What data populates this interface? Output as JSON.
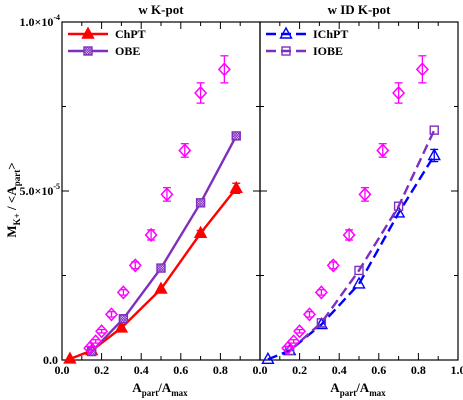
{
  "chart_data": [
    {
      "type": "scatter",
      "title": "w K-pot",
      "xlim": [
        0,
        1.0
      ],
      "ylim": [
        0,
        0.0001
      ],
      "x_ticks": [
        0,
        0.2,
        0.4,
        0.6,
        0.8
      ],
      "x_tick_labels": [
        "0.0",
        "0.2",
        "0.4",
        "0.6",
        "0.8"
      ],
      "y_ticks": [
        0,
        5e-05,
        0.0001
      ],
      "y_tick_labels": [
        "0.0",
        "5.0×10",
        "1.0×10"
      ],
      "y_tick_exp": [
        "",
        "-5",
        "-4"
      ],
      "legend_position": "top-left",
      "series": [
        {
          "name": "ChPT",
          "color": "#ff0000",
          "marker": "triangle-filled",
          "line": "solid",
          "x": [
            0.04,
            0.15,
            0.3,
            0.5,
            0.7,
            0.88
          ],
          "y": [
            3e-07,
            2.8e-06,
            9.5e-06,
            2.1e-05,
            3.75e-05,
            5.08e-05
          ],
          "err": [
            0,
            0,
            0,
            0,
            8e-07,
            1.5e-06
          ]
        },
        {
          "name": "OBE",
          "color": "#7f2fbf",
          "marker": "square-hatched",
          "line": "solid",
          "x": [
            0.15,
            0.31,
            0.5,
            0.7,
            0.88
          ],
          "y": [
            2.5e-06,
            1.22e-05,
            2.72e-05,
            4.65e-05,
            6.63e-05
          ],
          "err": [
            0,
            0,
            0,
            0,
            0
          ]
        },
        {
          "marker": "diamond-open",
          "color": "#ff00ff",
          "line": "none",
          "x": [
            0.14,
            0.17,
            0.2,
            0.25,
            0.31,
            0.37,
            0.45,
            0.53,
            0.62,
            0.7,
            0.82
          ],
          "y": [
            3.5e-06,
            5.5e-06,
            8.5e-06,
            1.35e-05,
            2e-05,
            2.8e-05,
            3.7e-05,
            4.9e-05,
            6.2e-05,
            7.9e-05,
            8.6e-05
          ],
          "err": [
            5e-07,
            5e-07,
            5e-07,
            8e-07,
            8e-07,
            1e-06,
            1.5e-06,
            2e-06,
            2e-06,
            3e-06,
            4e-06
          ]
        }
      ]
    },
    {
      "type": "scatter",
      "title": "w ID K-pot",
      "xlim": [
        0,
        1.0
      ],
      "ylim": [
        0,
        0.0001
      ],
      "x_ticks": [
        0,
        0.2,
        0.4,
        0.6,
        0.8,
        1.0
      ],
      "x_tick_labels": [
        "0.0",
        "0.2",
        "0.4",
        "0.6",
        "0.8",
        "1.0"
      ],
      "legend_position": "top-left",
      "series": [
        {
          "name": "IChPT",
          "color": "#0000ff",
          "marker": "triangle-open",
          "line": "dashed",
          "x": [
            0.04,
            0.15,
            0.31,
            0.5,
            0.7,
            0.88
          ],
          "y": [
            2e-07,
            2.8e-06,
            1.05e-05,
            2.25e-05,
            4.35e-05,
            6.05e-05
          ],
          "err": [
            0,
            0,
            0,
            0,
            0,
            1.8e-06
          ]
        },
        {
          "name": "IOBE",
          "color": "#7f2fbf",
          "marker": "square-open",
          "line": "dashed",
          "x": [
            0.15,
            0.31,
            0.5,
            0.7,
            0.88
          ],
          "y": [
            2.8e-06,
            1.1e-05,
            2.65e-05,
            4.55e-05,
            6.8e-05
          ],
          "err": [
            0,
            0,
            0,
            0,
            0
          ]
        },
        {
          "marker": "diamond-open",
          "color": "#ff00ff",
          "line": "none",
          "x": [
            0.14,
            0.17,
            0.2,
            0.25,
            0.31,
            0.37,
            0.45,
            0.53,
            0.62,
            0.7,
            0.82
          ],
          "y": [
            3.5e-06,
            5.5e-06,
            8.5e-06,
            1.35e-05,
            2e-05,
            2.8e-05,
            3.7e-05,
            4.9e-05,
            6.2e-05,
            7.9e-05,
            8.6e-05
          ],
          "err": [
            5e-07,
            5e-07,
            5e-07,
            8e-07,
            8e-07,
            1e-06,
            1.5e-06,
            2e-06,
            2e-06,
            3e-06,
            4e-06
          ]
        }
      ]
    }
  ],
  "axes": {
    "ylabel": {
      "main": "M",
      "sub": "K+",
      "mid": " / <A",
      "sub2": "part",
      "end": ">"
    },
    "xlabel": {
      "main": "A",
      "sub": "part",
      "mid": "/A",
      "sub2": "max"
    }
  }
}
